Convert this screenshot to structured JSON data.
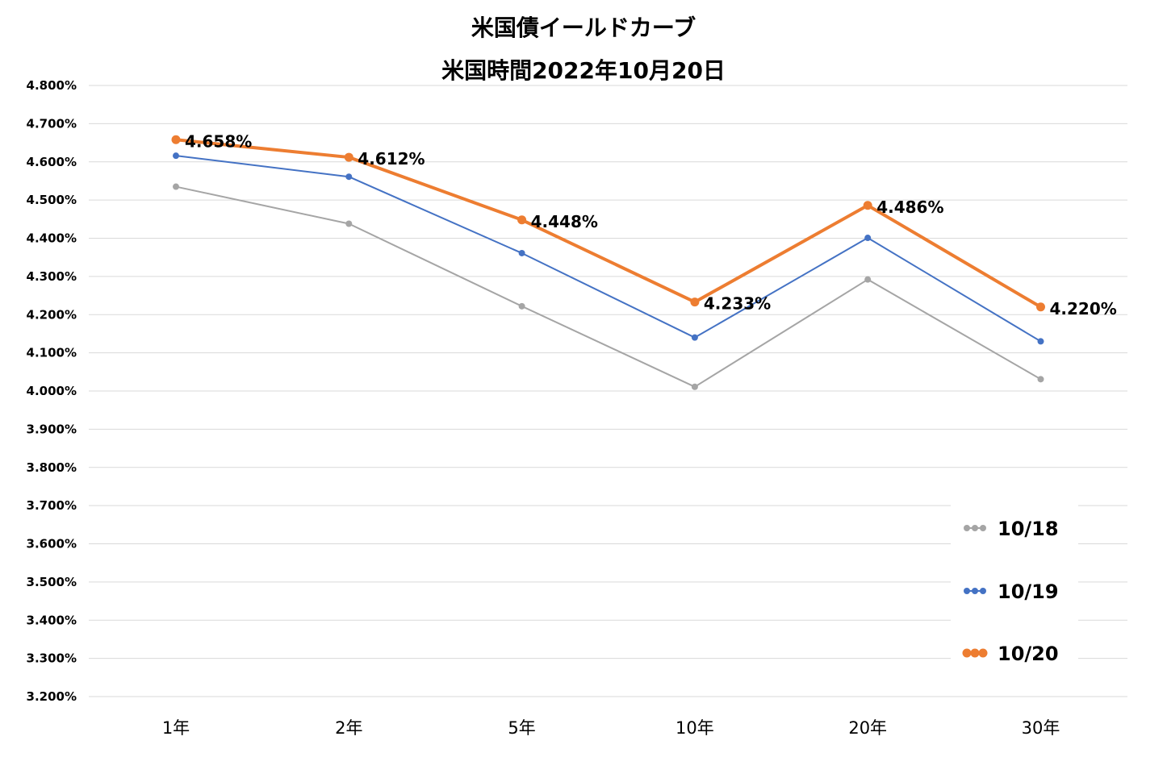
{
  "chart_data": {
    "type": "line",
    "title": [
      "米国債イールドカーブ",
      "米国時間2022年10月20日"
    ],
    "categories": [
      "1年",
      "2年",
      "5年",
      "10年",
      "20年",
      "30年"
    ],
    "ylim": [
      3.2,
      4.8
    ],
    "ytick_step": 0.1,
    "ytick_labels": [
      "3.200%",
      "3.300%",
      "3.400%",
      "3.500%",
      "3.600%",
      "3.700%",
      "3.800%",
      "3.900%",
      "4.000%",
      "4.100%",
      "4.200%",
      "4.300%",
      "4.400%",
      "4.500%",
      "4.600%",
      "4.700%",
      "4.800%"
    ],
    "grid": true,
    "legend_position": "bottom-right",
    "series": [
      {
        "name": "10/18",
        "color": "#a5a5a5",
        "values": [
          4.535,
          4.438,
          4.222,
          4.011,
          4.292,
          4.031
        ]
      },
      {
        "name": "10/19",
        "color": "#4472c4",
        "values": [
          4.616,
          4.561,
          4.361,
          4.14,
          4.401,
          4.13
        ]
      },
      {
        "name": "10/20",
        "color": "#ed7d31",
        "values": [
          4.658,
          4.612,
          4.448,
          4.233,
          4.486,
          4.22
        ],
        "data_labels": [
          "4.658%",
          "4.612%",
          "4.448%",
          "4.233%",
          "4.486%",
          "4.220%"
        ]
      }
    ]
  }
}
